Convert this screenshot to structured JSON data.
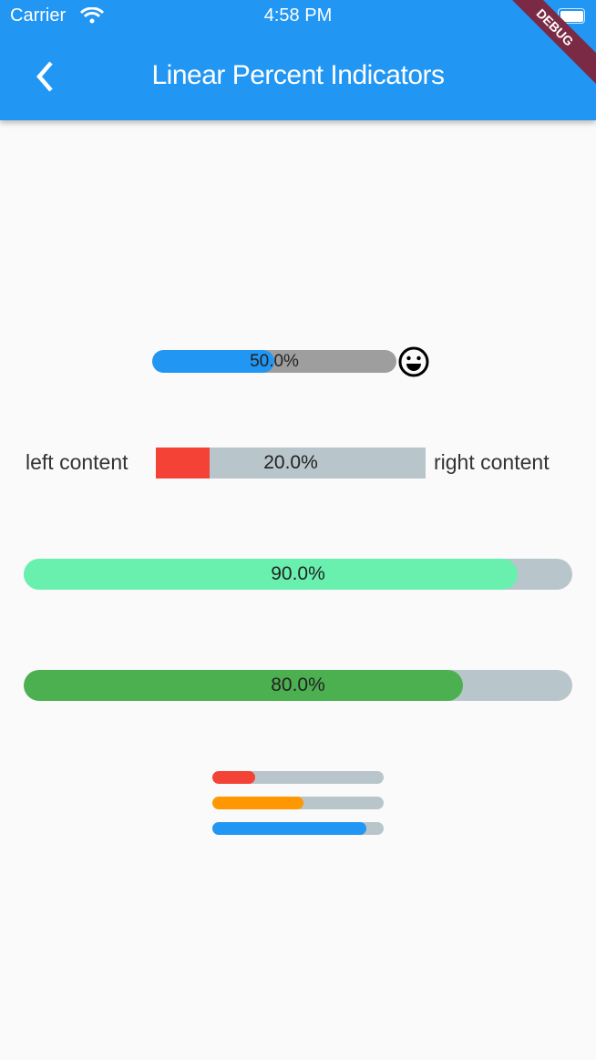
{
  "status_bar": {
    "carrier": "Carrier",
    "time": "4:58 PM"
  },
  "app_bar": {
    "title": "Linear Percent Indicators",
    "debug_banner": "DEBUG"
  },
  "indicators": [
    {
      "percent": 0.5,
      "label": "50.0%",
      "progress_color": "#2196f3",
      "background_color": "#9e9e9e",
      "trailing_icon": "smiley-face-icon"
    },
    {
      "percent": 0.2,
      "label": "20.0%",
      "progress_color": "#f44336",
      "background_color": "#b8c6cc",
      "leading": "left content",
      "trailing": "right content"
    },
    {
      "percent": 0.9,
      "label": "90.0%",
      "progress_color": "#69f0ae",
      "background_color": "#b8c6cc"
    },
    {
      "percent": 0.8,
      "label": "80.0%",
      "progress_color": "#4caf50",
      "background_color": "#b8c6cc"
    }
  ],
  "small_indicators": [
    {
      "percent": 0.25,
      "progress_color": "#f44336"
    },
    {
      "percent": 0.53,
      "progress_color": "#ff9800"
    },
    {
      "percent": 0.9,
      "progress_color": "#2196f3"
    }
  ]
}
